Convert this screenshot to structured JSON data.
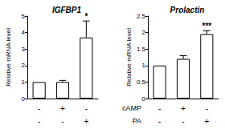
{
  "chart_data": [
    {
      "type": "bar",
      "title": "IGFBP1",
      "y_label": "Relative mRNA level",
      "categories": [
        null,
        null,
        null
      ],
      "values": [
        1.0,
        1.0,
        3.7
      ],
      "errors": [
        0,
        0.1,
        1.0
      ],
      "significance": [
        null,
        null,
        "*"
      ],
      "treatments": [
        [
          "-",
          "+",
          "-"
        ],
        [
          "-",
          "-",
          "+"
        ]
      ],
      "color": "#ffffff",
      "ylim": [
        0,
        5
      ],
      "yticks": [
        0,
        1,
        2,
        3,
        4,
        5
      ],
      "grid": false
    },
    {
      "type": "bar",
      "title": "Prolactin",
      "y_label": "Relative mRNA level",
      "categories": [
        null,
        null,
        null
      ],
      "values": [
        1.0,
        1.2,
        1.95
      ],
      "errors": [
        0,
        0.1,
        0.1
      ],
      "significance": [
        null,
        null,
        "***"
      ],
      "treatments": [
        [
          "-",
          "+",
          "-"
        ],
        [
          "-",
          "-",
          "+"
        ]
      ],
      "color": "#ffffff",
      "ylim": [
        0,
        2.5
      ],
      "yticks": [
        0,
        0.5,
        1,
        1.5,
        2,
        2.5
      ],
      "grid": false
    }
  ],
  "row_labels": [
    "cAMP",
    "PA"
  ]
}
